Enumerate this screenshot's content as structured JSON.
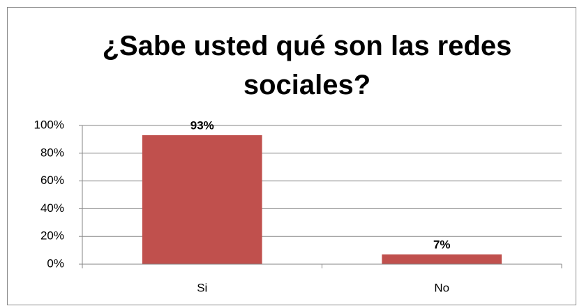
{
  "chart_data": {
    "type": "bar",
    "title": "¿Sabe usted qué son las redes sociales?",
    "categories": [
      "Si",
      "No"
    ],
    "values": [
      93,
      7
    ],
    "value_labels": [
      "93%",
      "7%"
    ],
    "color": "#c0504d",
    "ylim": [
      0,
      100
    ],
    "yticks": [
      {
        "value": 0,
        "label": "0%"
      },
      {
        "value": 20,
        "label": "20%"
      },
      {
        "value": 40,
        "label": "40%"
      },
      {
        "value": 60,
        "label": "60%"
      },
      {
        "value": 80,
        "label": "80%"
      },
      {
        "value": 100,
        "label": "100%"
      }
    ],
    "grid": true
  }
}
